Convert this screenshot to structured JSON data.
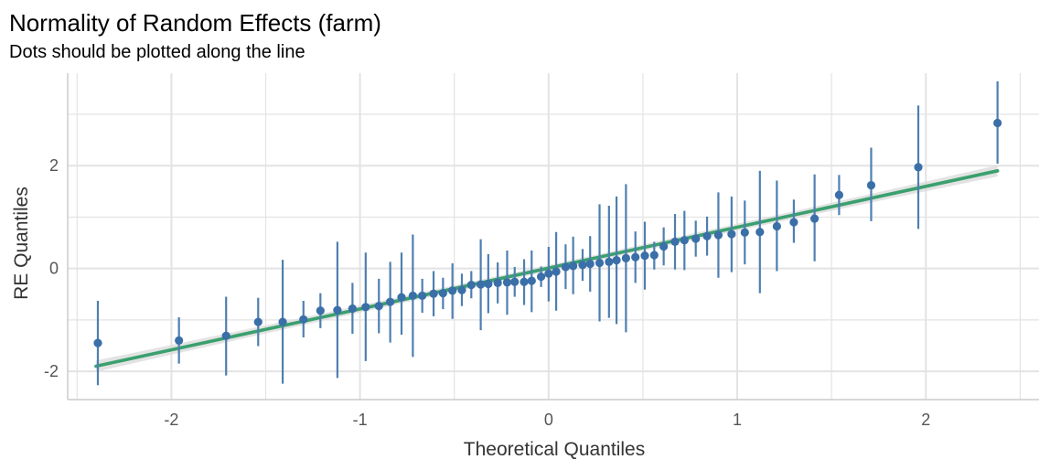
{
  "chart_data": {
    "type": "scatter",
    "title": "Normality of Random Effects (farm)",
    "subtitle": "Dots should be plotted along the line",
    "xlabel": "Theoretical Quantiles",
    "ylabel": "RE Quantiles",
    "xlim": [
      -2.55,
      2.6
    ],
    "ylim": [
      -2.55,
      3.8
    ],
    "x_ticks": [
      -2,
      -1,
      0,
      1,
      2
    ],
    "x_tick_labels": [
      "-2",
      "-1",
      "0",
      "1",
      "2"
    ],
    "y_ticks": [
      -2,
      0,
      2
    ],
    "y_tick_labels": [
      "-2",
      "0",
      "2"
    ],
    "grid": true,
    "colors": {
      "points": "#3a6fa8",
      "errorbars": "#4e7fb0",
      "line": "#3aa06e",
      "ribbon": "#d9d9d9",
      "grid": "#e3e3e3",
      "axis": "#cccccc"
    },
    "reference_line": {
      "x": [
        -2.4,
        2.38
      ],
      "y": [
        -1.9,
        1.9
      ]
    },
    "points": [
      {
        "x": -2.39,
        "y": -1.45,
        "lo": -2.27,
        "hi": -0.63
      },
      {
        "x": -1.96,
        "y": -1.4,
        "lo": -1.85,
        "hi": -0.95
      },
      {
        "x": -1.71,
        "y": -1.31,
        "lo": -2.08,
        "hi": -0.55
      },
      {
        "x": -1.54,
        "y": -1.04,
        "lo": -1.51,
        "hi": -0.57
      },
      {
        "x": -1.41,
        "y": -1.04,
        "lo": -2.24,
        "hi": 0.17
      },
      {
        "x": -1.3,
        "y": -0.99,
        "lo": -1.34,
        "hi": -0.63
      },
      {
        "x": -1.21,
        "y": -0.82,
        "lo": -1.16,
        "hi": -0.48
      },
      {
        "x": -1.12,
        "y": -0.81,
        "lo": -2.13,
        "hi": 0.52
      },
      {
        "x": -1.04,
        "y": -0.78,
        "lo": -1.27,
        "hi": -0.28
      },
      {
        "x": -0.97,
        "y": -0.75,
        "lo": -1.8,
        "hi": 0.31
      },
      {
        "x": -0.9,
        "y": -0.73,
        "lo": -1.26,
        "hi": -0.2
      },
      {
        "x": -0.84,
        "y": -0.65,
        "lo": -1.44,
        "hi": 0.13
      },
      {
        "x": -0.78,
        "y": -0.56,
        "lo": -1.29,
        "hi": 0.31
      },
      {
        "x": -0.72,
        "y": -0.53,
        "lo": -1.72,
        "hi": 0.66
      },
      {
        "x": -0.67,
        "y": -0.53,
        "lo": -0.86,
        "hi": -0.2
      },
      {
        "x": -0.61,
        "y": -0.49,
        "lo": -0.93,
        "hi": -0.05
      },
      {
        "x": -0.56,
        "y": -0.48,
        "lo": -0.79,
        "hi": -0.18
      },
      {
        "x": -0.51,
        "y": -0.43,
        "lo": -0.98,
        "hi": 0.1
      },
      {
        "x": -0.46,
        "y": -0.42,
        "lo": -0.73,
        "hi": -0.1
      },
      {
        "x": -0.41,
        "y": -0.32,
        "lo": -0.58,
        "hi": -0.05
      },
      {
        "x": -0.36,
        "y": -0.31,
        "lo": -1.2,
        "hi": 0.57
      },
      {
        "x": -0.32,
        "y": -0.3,
        "lo": -0.87,
        "hi": 0.28
      },
      {
        "x": -0.27,
        "y": -0.28,
        "lo": -0.68,
        "hi": 0.12
      },
      {
        "x": -0.22,
        "y": -0.27,
        "lo": -0.9,
        "hi": 0.35
      },
      {
        "x": -0.18,
        "y": -0.26,
        "lo": -0.55,
        "hi": 0.03
      },
      {
        "x": -0.13,
        "y": -0.26,
        "lo": -0.71,
        "hi": 0.18
      },
      {
        "x": -0.09,
        "y": -0.24,
        "lo": -0.85,
        "hi": 0.35
      },
      {
        "x": -0.04,
        "y": -0.16,
        "lo": -0.36,
        "hi": 0.04
      },
      {
        "x": 0.0,
        "y": -0.1,
        "lo": -0.64,
        "hi": 0.42
      },
      {
        "x": 0.04,
        "y": -0.06,
        "lo": -0.82,
        "hi": 0.71
      },
      {
        "x": 0.09,
        "y": 0.03,
        "lo": -0.4,
        "hi": 0.47
      },
      {
        "x": 0.13,
        "y": 0.05,
        "lo": -0.5,
        "hi": 0.62
      },
      {
        "x": 0.18,
        "y": 0.07,
        "lo": -0.24,
        "hi": 0.38
      },
      {
        "x": 0.22,
        "y": 0.09,
        "lo": -0.45,
        "hi": 0.63
      },
      {
        "x": 0.27,
        "y": 0.11,
        "lo": -1.03,
        "hi": 1.25
      },
      {
        "x": 0.32,
        "y": 0.13,
        "lo": -0.96,
        "hi": 1.22
      },
      {
        "x": 0.36,
        "y": 0.16,
        "lo": -1.08,
        "hi": 1.4
      },
      {
        "x": 0.41,
        "y": 0.2,
        "lo": -1.24,
        "hi": 1.64
      },
      {
        "x": 0.46,
        "y": 0.22,
        "lo": -0.28,
        "hi": 0.72
      },
      {
        "x": 0.51,
        "y": 0.25,
        "lo": -0.41,
        "hi": 0.91
      },
      {
        "x": 0.56,
        "y": 0.26,
        "lo": -0.02,
        "hi": 0.52
      },
      {
        "x": 0.61,
        "y": 0.43,
        "lo": 0.06,
        "hi": 0.8
      },
      {
        "x": 0.67,
        "y": 0.52,
        "lo": -0.02,
        "hi": 1.06
      },
      {
        "x": 0.72,
        "y": 0.55,
        "lo": -0.03,
        "hi": 1.12
      },
      {
        "x": 0.78,
        "y": 0.58,
        "lo": 0.23,
        "hi": 0.93
      },
      {
        "x": 0.84,
        "y": 0.63,
        "lo": 0.25,
        "hi": 1.01
      },
      {
        "x": 0.9,
        "y": 0.65,
        "lo": -0.18,
        "hi": 1.48
      },
      {
        "x": 0.97,
        "y": 0.67,
        "lo": -0.07,
        "hi": 1.4
      },
      {
        "x": 1.04,
        "y": 0.7,
        "lo": 0.08,
        "hi": 1.32
      },
      {
        "x": 1.12,
        "y": 0.71,
        "lo": -0.48,
        "hi": 1.9
      },
      {
        "x": 1.21,
        "y": 0.82,
        "lo": -0.05,
        "hi": 1.71
      },
      {
        "x": 1.3,
        "y": 0.9,
        "lo": 0.5,
        "hi": 1.34
      },
      {
        "x": 1.41,
        "y": 0.97,
        "lo": 0.14,
        "hi": 1.83
      },
      {
        "x": 1.54,
        "y": 1.43,
        "lo": 1.04,
        "hi": 1.82
      },
      {
        "x": 1.71,
        "y": 1.62,
        "lo": 0.92,
        "hi": 2.35
      },
      {
        "x": 1.96,
        "y": 1.97,
        "lo": 0.77,
        "hi": 3.17
      },
      {
        "x": 2.38,
        "y": 2.83,
        "lo": 2.04,
        "hi": 3.64
      }
    ]
  }
}
